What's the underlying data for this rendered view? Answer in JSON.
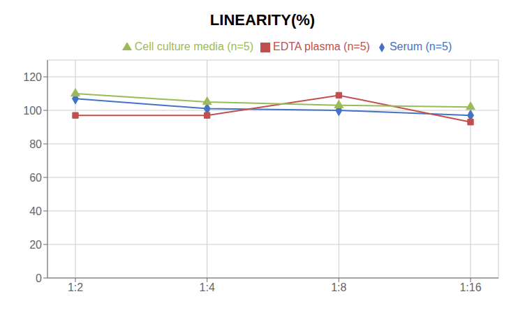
{
  "chart_data": {
    "type": "line",
    "title": "LINEARITY(%)",
    "categories": [
      "1:2",
      "1:4",
      "1:8",
      "1:16"
    ],
    "series": [
      {
        "name": "Serum (n=5)",
        "color": "#4472C4",
        "marker": "diamond",
        "values": [
          107,
          101,
          100,
          97
        ]
      },
      {
        "name": "EDTA plasma (n=5)",
        "color": "#C0504D",
        "marker": "square",
        "values": [
          97,
          97,
          109,
          93
        ]
      },
      {
        "name": "Cell culture media (n=5)",
        "color": "#9BBB59",
        "marker": "triangle",
        "values": [
          110,
          105,
          103,
          102
        ]
      }
    ],
    "ylim": [
      0,
      130
    ],
    "yticks": [
      0,
      20,
      40,
      60,
      80,
      100,
      120
    ],
    "grid": true,
    "legend": "top"
  }
}
